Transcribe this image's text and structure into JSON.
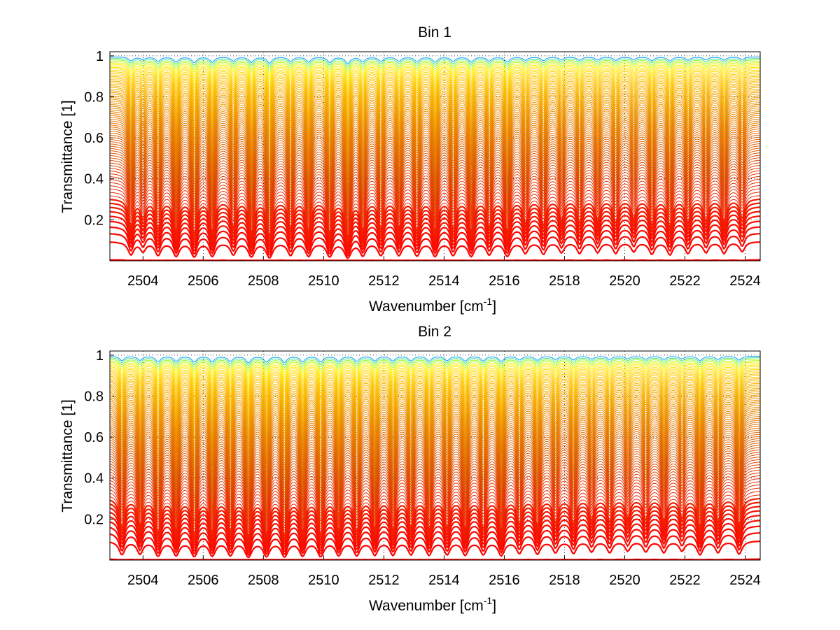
{
  "chart_data": [
    {
      "type": "line",
      "title": "Bin 1",
      "xlabel_base": "Wavenumber [cm",
      "xlabel_sup": "-1",
      "xlabel_end": "]",
      "ylabel": "Transmittance [1]",
      "xlim": [
        2502.9,
        2524.5
      ],
      "ylim": [
        0,
        1.02
      ],
      "xticks": [
        2504,
        2506,
        2508,
        2510,
        2512,
        2514,
        2516,
        2518,
        2520,
        2522,
        2524
      ],
      "xtick_labels": [
        "2504",
        "2506",
        "2508",
        "2510",
        "2512",
        "2514",
        "2516",
        "2518",
        "2520",
        "2522",
        "2524"
      ],
      "yticks": [
        0.2,
        0.4,
        0.6,
        0.8,
        1.0
      ],
      "ytick_labels": [
        "0.2",
        "0.4",
        "0.6",
        "0.8",
        "1"
      ],
      "grid": true,
      "series_count": 80,
      "baseline_min": 0.005,
      "baseline_max": 0.995,
      "line_positions": [
        2503.6,
        2504.0,
        2504.5,
        2505.1,
        2505.7,
        2506.3,
        2507.0,
        2507.6,
        2508.2,
        2508.9,
        2509.5,
        2510.2,
        2510.8,
        2511.3,
        2511.9,
        2512.5,
        2513.1,
        2513.7,
        2514.3,
        2514.9,
        2515.5,
        2516.1,
        2516.7,
        2517.3,
        2517.9,
        2518.5,
        2519.1,
        2519.7,
        2520.3,
        2520.9,
        2521.5,
        2522.1,
        2522.7,
        2523.3,
        2523.9
      ],
      "line_depths": [
        0.55,
        0.35,
        0.6,
        0.7,
        0.75,
        0.7,
        0.55,
        0.75,
        0.85,
        0.6,
        0.7,
        0.75,
        0.9,
        0.65,
        0.6,
        0.6,
        0.65,
        0.7,
        0.6,
        0.7,
        0.55,
        0.7,
        0.45,
        0.5,
        0.4,
        0.45,
        0.4,
        0.45,
        0.35,
        0.5,
        0.55,
        0.45,
        0.4,
        0.45,
        0.35
      ]
    },
    {
      "type": "line",
      "title": "Bin 2",
      "xlabel_base": "Wavenumber [cm",
      "xlabel_sup": "-1",
      "xlabel_end": "]",
      "ylabel": "Transmittance [1]",
      "xlim": [
        2502.9,
        2524.5
      ],
      "ylim": [
        0,
        1.02
      ],
      "xticks": [
        2504,
        2506,
        2508,
        2510,
        2512,
        2514,
        2516,
        2518,
        2520,
        2522,
        2524
      ],
      "xtick_labels": [
        "2504",
        "2506",
        "2508",
        "2510",
        "2512",
        "2514",
        "2516",
        "2518",
        "2520",
        "2522",
        "2524"
      ],
      "yticks": [
        0.2,
        0.4,
        0.6,
        0.8,
        1.0
      ],
      "ytick_labels": [
        "0.2",
        "0.4",
        "0.6",
        "0.8",
        "1"
      ],
      "grid": true,
      "series_count": 80,
      "baseline_min": 0.005,
      "baseline_max": 0.995,
      "line_positions": [
        2503.3,
        2503.9,
        2504.5,
        2505.1,
        2505.7,
        2506.3,
        2506.9,
        2507.5,
        2508.1,
        2508.7,
        2509.3,
        2509.9,
        2510.5,
        2511.1,
        2511.7,
        2512.3,
        2512.9,
        2513.5,
        2514.1,
        2514.7,
        2515.3,
        2515.9,
        2516.5,
        2517.1,
        2517.7,
        2518.3,
        2518.9,
        2519.5,
        2520.1,
        2520.7,
        2521.3,
        2521.9,
        2522.5,
        2523.1,
        2523.8
      ],
      "line_depths": [
        0.6,
        0.55,
        0.75,
        0.7,
        0.8,
        0.75,
        0.7,
        0.9,
        0.8,
        0.85,
        0.75,
        0.8,
        0.7,
        0.7,
        0.65,
        0.65,
        0.6,
        0.65,
        0.6,
        0.65,
        0.6,
        0.7,
        0.5,
        0.55,
        0.45,
        0.5,
        0.4,
        0.45,
        0.35,
        0.4,
        0.45,
        0.35,
        0.6,
        0.45,
        0.55
      ]
    }
  ],
  "colors": {
    "bottom_series": "#ff0000",
    "mid_series": "#e07a00",
    "upper_series": "#ffd700",
    "top_series": "#7fff00",
    "topmost_series": "#00aaff",
    "axes": "#000000",
    "grid": "#000000",
    "background": "#ffffff"
  }
}
